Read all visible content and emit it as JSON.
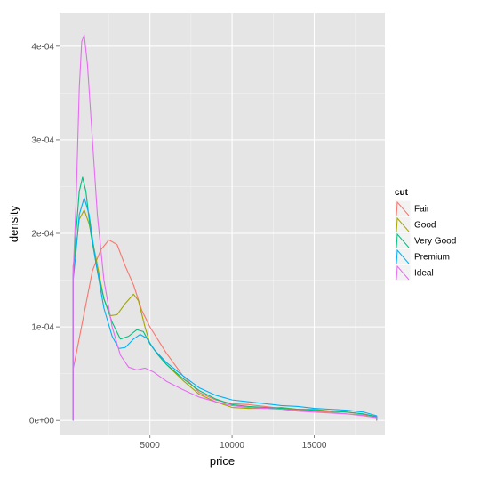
{
  "chart_data": {
    "type": "line",
    "xlabel": "price",
    "ylabel": "density",
    "xlim": [
      -500,
      19300
    ],
    "ylim": [
      -1.5e-05,
      0.000435
    ],
    "x_ticks": [
      5000,
      10000,
      15000
    ],
    "x_tick_labels": [
      "5000",
      "10000",
      "15000"
    ],
    "y_ticks": [
      0,
      0.0001,
      0.0002,
      0.0003,
      0.0004
    ],
    "y_tick_labels": [
      "0e+00",
      "1e-04",
      "2e-04",
      "3e-04",
      "4e-04"
    ],
    "grid": true,
    "legend": {
      "title": "cut",
      "position": "right"
    },
    "series": [
      {
        "name": "Fair",
        "color": "#F8766D",
        "points": [
          [
            326,
            0
          ],
          [
            326,
            5.5e-05
          ],
          [
            500,
            7e-05
          ],
          [
            1000,
            0.000115
          ],
          [
            1500,
            0.00016
          ],
          [
            2000,
            0.000182
          ],
          [
            2500,
            0.000193
          ],
          [
            3000,
            0.000188
          ],
          [
            3500,
            0.000165
          ],
          [
            4000,
            0.000145
          ],
          [
            4500,
            0.000118
          ],
          [
            5000,
            0.0001
          ],
          [
            6000,
            7.2e-05
          ],
          [
            7000,
            4.8e-05
          ],
          [
            8000,
            3e-05
          ],
          [
            9000,
            2.2e-05
          ],
          [
            10000,
            1.8e-05
          ],
          [
            11000,
            1.7e-05
          ],
          [
            12000,
            1.5e-05
          ],
          [
            13000,
            1.3e-05
          ],
          [
            14000,
            1.1e-05
          ],
          [
            15000,
            1e-05
          ],
          [
            16000,
            9e-06
          ],
          [
            17000,
            7e-06
          ],
          [
            18000,
            6e-06
          ],
          [
            18800,
            4e-06
          ],
          [
            18800,
            0
          ]
        ]
      },
      {
        "name": "Good",
        "color": "#A3A500",
        "points": [
          [
            326,
            0
          ],
          [
            326,
            0.000165
          ],
          [
            500,
            0.000185
          ],
          [
            700,
            0.000215
          ],
          [
            1000,
            0.000225
          ],
          [
            1300,
            0.00021
          ],
          [
            1700,
            0.000175
          ],
          [
            2200,
            0.00013
          ],
          [
            2600,
            0.000112
          ],
          [
            3000,
            0.000113
          ],
          [
            3500,
            0.000125
          ],
          [
            4000,
            0.000135
          ],
          [
            4300,
            0.000128
          ],
          [
            4700,
            0.0001
          ],
          [
            5000,
            8.2e-05
          ],
          [
            5500,
            7e-05
          ],
          [
            6000,
            6e-05
          ],
          [
            7000,
            4.3e-05
          ],
          [
            8000,
            2.8e-05
          ],
          [
            9000,
            2e-05
          ],
          [
            10000,
            1.4e-05
          ],
          [
            11000,
            1.3e-05
          ],
          [
            12000,
            1.3e-05
          ],
          [
            13000,
            1.4e-05
          ],
          [
            14000,
            1.2e-05
          ],
          [
            15000,
            1.2e-05
          ],
          [
            16000,
            1e-05
          ],
          [
            17000,
            9e-06
          ],
          [
            18000,
            7e-06
          ],
          [
            18800,
            4e-06
          ],
          [
            18800,
            0
          ]
        ]
      },
      {
        "name": "Very Good",
        "color": "#00BF7D",
        "points": [
          [
            326,
            0
          ],
          [
            326,
            0.000155
          ],
          [
            500,
            0.0002
          ],
          [
            700,
            0.000245
          ],
          [
            900,
            0.00026
          ],
          [
            1100,
            0.000245
          ],
          [
            1400,
            0.0002
          ],
          [
            1800,
            0.00016
          ],
          [
            2200,
            0.00013
          ],
          [
            2700,
            0.000105
          ],
          [
            3200,
            8.7e-05
          ],
          [
            3700,
            9e-05
          ],
          [
            4200,
            9.7e-05
          ],
          [
            4600,
            9.5e-05
          ],
          [
            5000,
            8.2e-05
          ],
          [
            5500,
            7e-05
          ],
          [
            6000,
            6e-05
          ],
          [
            7000,
            4.5e-05
          ],
          [
            8000,
            3.2e-05
          ],
          [
            9000,
            2.3e-05
          ],
          [
            10000,
            1.7e-05
          ],
          [
            11000,
            1.5e-05
          ],
          [
            12000,
            1.4e-05
          ],
          [
            13000,
            1.3e-05
          ],
          [
            14000,
            1.2e-05
          ],
          [
            15000,
            1.1e-05
          ],
          [
            16000,
            1e-05
          ],
          [
            17000,
            9e-06
          ],
          [
            18000,
            7e-06
          ],
          [
            18800,
            4e-06
          ],
          [
            18800,
            0
          ]
        ]
      },
      {
        "name": "Premium",
        "color": "#00B0F6",
        "points": [
          [
            326,
            0
          ],
          [
            326,
            0.00015
          ],
          [
            500,
            0.00018
          ],
          [
            700,
            0.00022
          ],
          [
            1000,
            0.000238
          ],
          [
            1300,
            0.00022
          ],
          [
            1700,
            0.00017
          ],
          [
            2200,
            0.00012
          ],
          [
            2700,
            9e-05
          ],
          [
            3100,
            7.7e-05
          ],
          [
            3500,
            7.8e-05
          ],
          [
            4000,
            8.7e-05
          ],
          [
            4400,
            9.2e-05
          ],
          [
            4800,
            8.8e-05
          ],
          [
            5300,
            7.5e-05
          ],
          [
            6000,
            6.2e-05
          ],
          [
            7000,
            4.8e-05
          ],
          [
            8000,
            3.5e-05
          ],
          [
            9000,
            2.7e-05
          ],
          [
            10000,
            2.2e-05
          ],
          [
            11000,
            2e-05
          ],
          [
            12000,
            1.8e-05
          ],
          [
            13000,
            1.6e-05
          ],
          [
            14000,
            1.5e-05
          ],
          [
            15000,
            1.3e-05
          ],
          [
            16000,
            1.2e-05
          ],
          [
            17000,
            1.1e-05
          ],
          [
            18000,
            9e-06
          ],
          [
            18800,
            5e-06
          ],
          [
            18800,
            0
          ]
        ]
      },
      {
        "name": "Ideal",
        "color": "#E76BF3",
        "points": [
          [
            326,
            0
          ],
          [
            326,
            0.000155
          ],
          [
            500,
            0.00023
          ],
          [
            700,
            0.000355
          ],
          [
            850,
            0.000405
          ],
          [
            1000,
            0.000412
          ],
          [
            1200,
            0.00038
          ],
          [
            1500,
            0.0003
          ],
          [
            1800,
            0.00022
          ],
          [
            2200,
            0.00015
          ],
          [
            2700,
            0.0001
          ],
          [
            3200,
            7e-05
          ],
          [
            3700,
            5.7e-05
          ],
          [
            4200,
            5.4e-05
          ],
          [
            4700,
            5.6e-05
          ],
          [
            5200,
            5.2e-05
          ],
          [
            6000,
            4.2e-05
          ],
          [
            7000,
            3.3e-05
          ],
          [
            8000,
            2.5e-05
          ],
          [
            9000,
            2e-05
          ],
          [
            10000,
            1.6e-05
          ],
          [
            11000,
            1.4e-05
          ],
          [
            12000,
            1.3e-05
          ],
          [
            13000,
            1.2e-05
          ],
          [
            14000,
            1e-05
          ],
          [
            15000,
            9e-06
          ],
          [
            16000,
            8e-06
          ],
          [
            17000,
            7e-06
          ],
          [
            18000,
            5e-06
          ],
          [
            18800,
            3e-06
          ],
          [
            18800,
            0
          ]
        ]
      }
    ]
  }
}
